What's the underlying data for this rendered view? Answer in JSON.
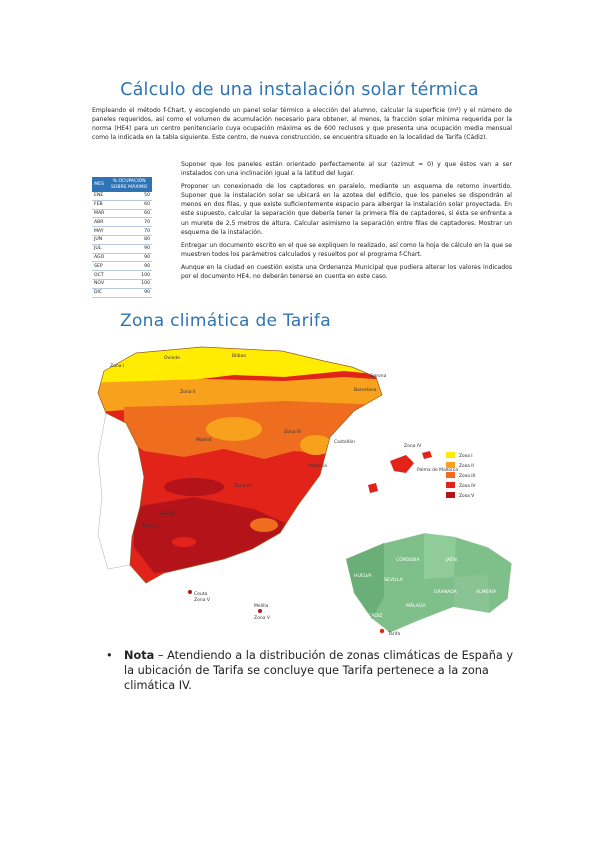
{
  "title": "Cálculo de una instalación solar térmica",
  "intro": "Empleando el método f-Chart, y escogiendo un panel solar térmico a elección del alumno, calcular la superficie (m²) y el número de paneles requeridos, así como el volumen de acumulación necesario para obtener, al menos, la fracción solar mínima requerida por la norma (HE4) para un centro penitenciario cuya ocupación máxima es de 600 reclusos y que presenta una ocupación media mensual como la indicada en la tabla siguiente. Este centro, de nueva construcción, se encuentra situado en la localidad de Tarifa (Cádiz).",
  "table": {
    "headers": [
      "MES",
      "% OCUPACIÓN SOBRE MÁXIMO"
    ],
    "rows": [
      [
        "ENE",
        "50"
      ],
      [
        "FEB",
        "60"
      ],
      [
        "MAR",
        "60"
      ],
      [
        "ABR",
        "70"
      ],
      [
        "MAY",
        "70"
      ],
      [
        "JUN",
        "80"
      ],
      [
        "JUL",
        "90"
      ],
      [
        "AGO",
        "90"
      ],
      [
        "SEP",
        "90"
      ],
      [
        "OCT",
        "100"
      ],
      [
        "NOV",
        "100"
      ],
      [
        "DIC",
        "90"
      ]
    ]
  },
  "paragraphs": [
    "Suponer que los paneles están orientado perfectamente al sur (azimut = 0) y que éstos van a ser instalados con una inclinación igual a la latitud del lugar.",
    "Proponer un conexionado de los captadores en paralelo, mediante un esquema de retorno invertido. Suponer que la instalación solar se ubicará en la azotea del edificio, que los paneles se dispondrán al menos en dos filas, y que existe suficientemente espacio para albergar la instalación solar proyectada. En este supuesto, calcular la separación que debería tener la primera fila de captadores, si ésta se enfrenta a un murete de 2,5 metros de altura. Calcular asimismo la separación entre filas de captadores. Mostrar un esquema de la instalación.",
    "Entregar un documento escrito en el que se expliquen lo realizado, así como la hoja de cálculo en la que se muestren todos los parámetros calculados y resueltos por el programa f-Chart.",
    "Aunque en la ciudad en cuestión exista una Ordenanza Municipal que pudiera alterar los valores indicados por el documento HE4, no deberán tenerse en cuenta en este caso."
  ],
  "zone_title": "Zona climática de Tarifa",
  "legend": [
    "Zona I",
    "Zona II",
    "Zona III",
    "Zona IV",
    "Zona V"
  ],
  "zone_colors": [
    "#ffec00",
    "#f7a11c",
    "#ef6d1e",
    "#e2231a",
    "#b4131a"
  ],
  "map_labels": {
    "zona1": "Zona I",
    "zona2": "Zona II",
    "zona3": "Zona III",
    "zona4": "Zona IV",
    "zona5": "Zona V",
    "ceuta": "Ceuta",
    "melilla": "Melilla",
    "ceuta_zone": "Zona V",
    "melilla_zone": "Zona V",
    "palma": "Palma de Mallorca",
    "baleares_zone": "Zona IV",
    "gerona": "Gerona",
    "castellon": "Castellón",
    "madrid": "Madrid",
    "barcelona": "Barcelona",
    "valencia": "Valencia",
    "sevilla": "Sevilla",
    "bilbao": "Bilbao",
    "oviedo": "Oviedo",
    "huelva": "HUELVA",
    "sevilla_prov": "SEVILLA",
    "cadiz": "CÁDIZ",
    "cordoba": "CÓRDOBA",
    "jaen": "JAÉN",
    "granada": "GRANADA",
    "almeria": "ALMERÍA",
    "malaga": "MÁLAGA",
    "tarifa": "Tarifa"
  },
  "note": {
    "bullet": "•",
    "label": "Nota",
    "text": " – Atendiendo a la distribución de zonas climáticas de España y la ubicación de Tarifa se concluye que Tarifa pertenece a la zona climática IV."
  }
}
